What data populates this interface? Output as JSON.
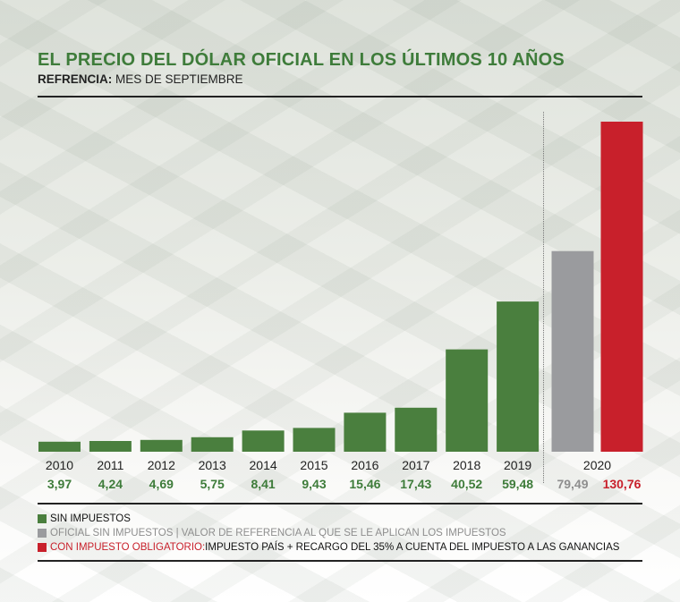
{
  "title": "EL PRECIO DEL DÓLAR OFICIAL EN LOS ÚLTIMOS 10 AÑOS",
  "subtitle_label": "REFRENCIA:",
  "subtitle_text": "MES DE SEPTIEMBRE",
  "colors": {
    "green": "#4a7f3e",
    "gray": "#9a9b9e",
    "red": "#c8202b",
    "title": "#3e7c3a"
  },
  "chart_data": {
    "type": "bar",
    "categories": [
      "2010",
      "2011",
      "2012",
      "2013",
      "2014",
      "2015",
      "2016",
      "2017",
      "2018",
      "2019",
      "2020"
    ],
    "series": [
      {
        "name": "SIN IMPUESTOS",
        "values": [
          3.97,
          4.24,
          4.69,
          5.75,
          8.41,
          9.43,
          15.46,
          17.43,
          40.52,
          59.48,
          null
        ],
        "labels": [
          "3,97",
          "4,24",
          "4,69",
          "5,75",
          "8,41",
          "9,43",
          "15,46",
          "17,43",
          "40,52",
          "59,48",
          ""
        ]
      },
      {
        "name": "OFICIAL SIN IMPUESTOS",
        "values": [
          null,
          null,
          null,
          null,
          null,
          null,
          null,
          null,
          null,
          null,
          79.49
        ],
        "labels": [
          "",
          "",
          "",
          "",
          "",
          "",
          "",
          "",
          "",
          "",
          "79,49"
        ]
      },
      {
        "name": "CON IMPUESTO OBLIGATORIO",
        "values": [
          null,
          null,
          null,
          null,
          null,
          null,
          null,
          null,
          null,
          null,
          130.76
        ],
        "labels": [
          "",
          "",
          "",
          "",
          "",
          "",
          "",
          "",
          "",
          "",
          "130,76"
        ]
      }
    ],
    "ylim": [
      0,
      135
    ]
  },
  "legend": {
    "item1": "SIN IMPUESTOS",
    "item2_label": "OFICIAL SIN IMPUESTOS",
    "item2_text": " | VALOR DE REFERENCIA AL QUE SE LE APLICAN LOS IMPUESTOS",
    "item3_label": "CON IMPUESTO OBLIGATORIO:",
    "item3_text": " IMPUESTO PAÍS + RECARGO DEL 35% A CUENTA DEL IMPUESTO A LAS GANANCIAS"
  }
}
